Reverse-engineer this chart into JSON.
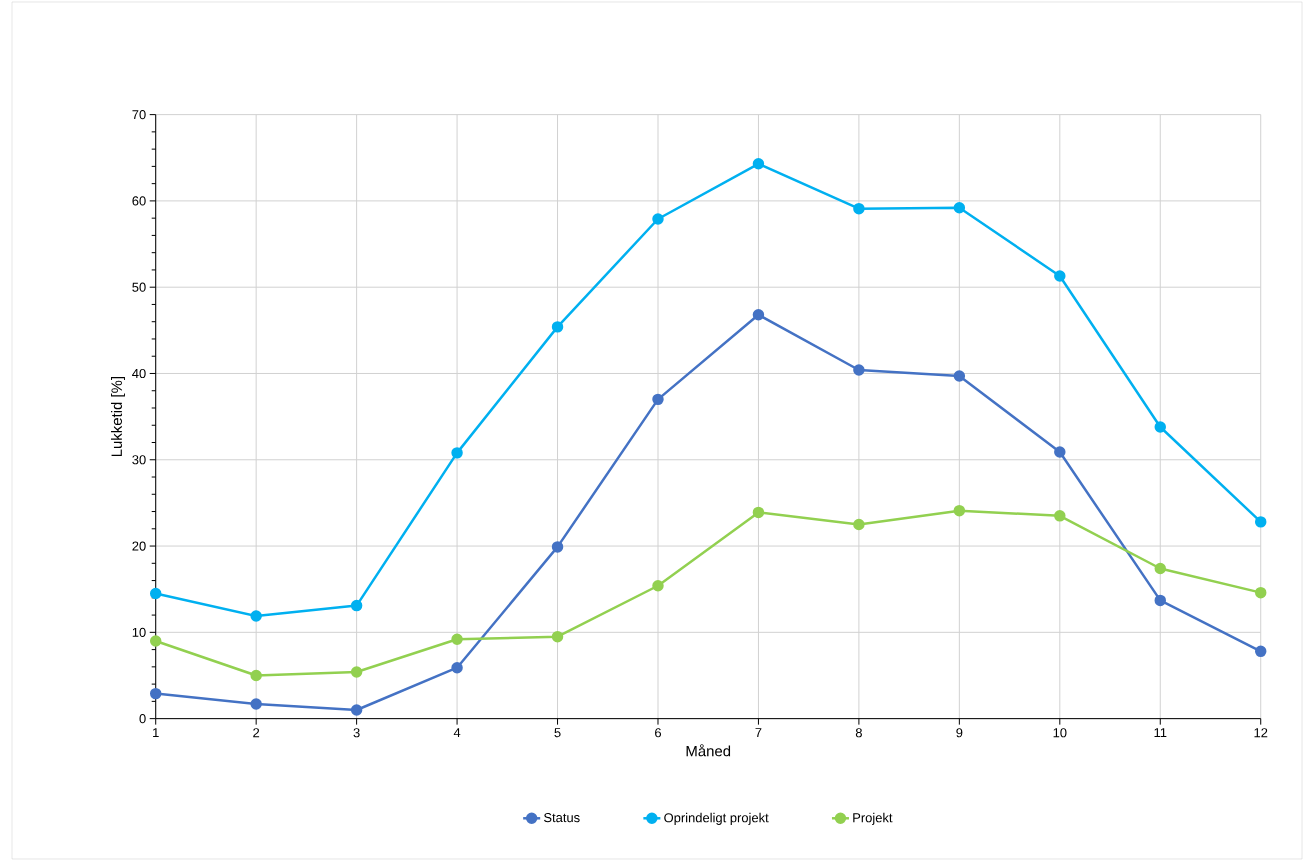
{
  "chart_data": {
    "type": "line",
    "xlabel": "Måned",
    "ylabel": "Lukketid [%]",
    "x": [
      1,
      2,
      3,
      4,
      5,
      6,
      7,
      8,
      9,
      10,
      11,
      12
    ],
    "xlim": [
      1,
      12
    ],
    "xticks": [
      1,
      2,
      3,
      4,
      5,
      6,
      7,
      8,
      9,
      10,
      11,
      12
    ],
    "ylim": [
      0,
      70
    ],
    "yticks": [
      0,
      10,
      20,
      30,
      40,
      50,
      60,
      70
    ],
    "grid": true,
    "legend": "bottom",
    "marker": "circle",
    "line_style": "solid",
    "series": [
      {
        "name": "Status",
        "color": "#4472c4",
        "values": [
          2.9,
          1.7,
          1.0,
          5.9,
          19.9,
          37.0,
          46.8,
          40.4,
          39.7,
          30.9,
          13.7,
          7.8
        ]
      },
      {
        "name": "Oprindeligt projekt",
        "color": "#00b0f0",
        "values": [
          14.5,
          11.9,
          13.1,
          30.8,
          45.4,
          57.9,
          64.3,
          59.1,
          59.2,
          51.3,
          33.8,
          22.8
        ]
      },
      {
        "name": "Projekt",
        "color": "#92d050",
        "values": [
          9.0,
          5.0,
          5.4,
          9.2,
          9.5,
          15.4,
          23.9,
          22.5,
          24.1,
          23.5,
          17.4,
          14.6
        ]
      }
    ]
  }
}
